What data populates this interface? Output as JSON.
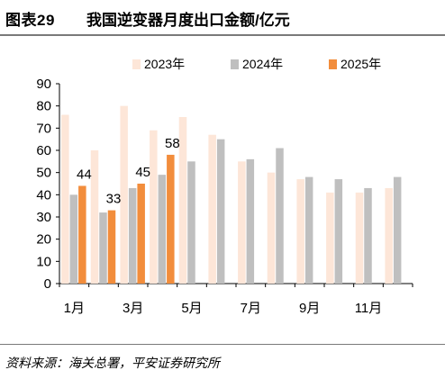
{
  "header": {
    "figure_no": "图表29",
    "title": "我国逆变器月度出口金额/亿元"
  },
  "footer": {
    "source": "资料来源：海关总署，平安证券研究所"
  },
  "chart_data": {
    "type": "bar",
    "title": "我国逆变器月度出口金额/亿元",
    "xlabel": "",
    "ylabel": "",
    "ylim": [
      0,
      90
    ],
    "yticks": [
      0,
      10,
      20,
      30,
      40,
      50,
      60,
      70,
      80,
      90
    ],
    "categories": [
      "1月",
      "2月",
      "3月",
      "4月",
      "5月",
      "6月",
      "7月",
      "8月",
      "9月",
      "10月",
      "11月",
      "12月"
    ],
    "xtick_labels": [
      "1月",
      "",
      "3月",
      "",
      "5月",
      "",
      "7月",
      "",
      "9月",
      "",
      "11月",
      ""
    ],
    "legend_position": "top",
    "grid": false,
    "series": [
      {
        "name": "2023年",
        "color": "#fde6d8",
        "values": [
          76,
          60,
          80,
          69,
          75,
          67,
          55,
          50,
          47,
          41,
          41,
          43
        ]
      },
      {
        "name": "2024年",
        "color": "#bfbfbf",
        "values": [
          40,
          32,
          43,
          49,
          55,
          65,
          56,
          61,
          48,
          47,
          43,
          48
        ]
      },
      {
        "name": "2025年",
        "color": "#f28d3c",
        "values": [
          44,
          33,
          45,
          58,
          null,
          null,
          null,
          null,
          null,
          null,
          null,
          null
        ],
        "data_labels": [
          "44",
          "33",
          "45",
          "58"
        ]
      }
    ]
  }
}
